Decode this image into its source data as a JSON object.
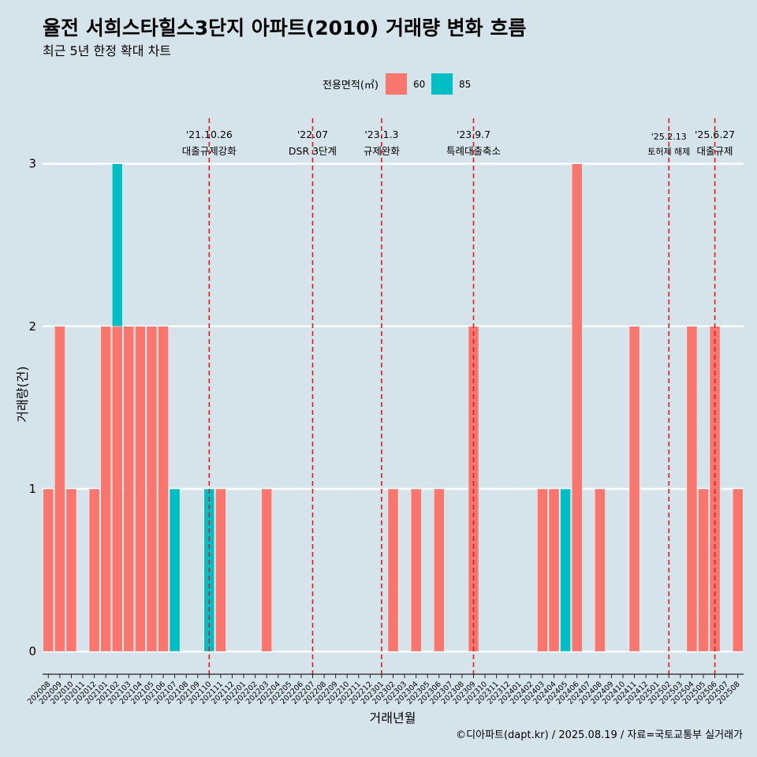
{
  "chart_data": {
    "type": "bar",
    "title": "율전 서희스타힐스3단지 아파트(2010) 거래량 변화 흐름",
    "subtitle": "최근 5년 한정 확대 차트",
    "xlabel": "거래년월",
    "ylabel": "거래량(건)",
    "ylim": [
      -0.14,
      3.28
    ],
    "yticks": [
      0,
      1,
      2,
      3
    ],
    "grid": "horizontal major",
    "legend": {
      "title": "전용면적(㎡)",
      "placement": "top"
    },
    "categories": [
      "202008",
      "202009",
      "202010",
      "202011",
      "202012",
      "202101",
      "202102",
      "202103",
      "202104",
      "202105",
      "202106",
      "202107",
      "202108",
      "202109",
      "202110",
      "202111",
      "202112",
      "202201",
      "202202",
      "202203",
      "202204",
      "202205",
      "202206",
      "202207",
      "202208",
      "202209",
      "202210",
      "202211",
      "202212",
      "202301",
      "202302",
      "202303",
      "202304",
      "202305",
      "202306",
      "202307",
      "202308",
      "202309",
      "202310",
      "202311",
      "202312",
      "202401",
      "202402",
      "202403",
      "202404",
      "202405",
      "202406",
      "202407",
      "202408",
      "202409",
      "202410",
      "202411",
      "202412",
      "202501",
      "202502",
      "202503",
      "202504",
      "202505",
      "202506",
      "202507",
      "202508"
    ],
    "series": [
      {
        "name": "60",
        "color": "#f8766d",
        "values": [
          1,
          2,
          1,
          0,
          1,
          2,
          2,
          2,
          2,
          2,
          2,
          0,
          0,
          0,
          0,
          1,
          0,
          0,
          0,
          1,
          0,
          0,
          0,
          0,
          0,
          0,
          0,
          0,
          0,
          0,
          1,
          0,
          1,
          0,
          1,
          0,
          0,
          2,
          0,
          0,
          0,
          0,
          0,
          1,
          1,
          0,
          3,
          0,
          1,
          0,
          0,
          2,
          0,
          0,
          0,
          0,
          2,
          1,
          2,
          0,
          1
        ]
      },
      {
        "name": "85",
        "color": "#00bfc4",
        "values": [
          0,
          0,
          0,
          0,
          0,
          0,
          1,
          0,
          0,
          0,
          0,
          1,
          0,
          0,
          1,
          0,
          0,
          0,
          0,
          0,
          0,
          0,
          0,
          0,
          0,
          0,
          0,
          0,
          0,
          0,
          0,
          0,
          0,
          0,
          0,
          0,
          0,
          0,
          0,
          0,
          0,
          0,
          0,
          0,
          0,
          1,
          0,
          0,
          0,
          0,
          0,
          0,
          0,
          0,
          0,
          0,
          0,
          0,
          0,
          0,
          0
        ]
      }
    ],
    "annotations": [
      {
        "x": "202110",
        "date": "'21.10.26",
        "label": "대출규제강화"
      },
      {
        "x": "202207",
        "date": "'22.07",
        "label": "DSR 3단계"
      },
      {
        "x": "202301",
        "date": "'23.1.3",
        "label": "규제완화"
      },
      {
        "x": "202309",
        "date": "'23.9.7",
        "label": "특례대출축소"
      },
      {
        "x": "202502",
        "date": "'25.2.13",
        "label": "토허제 해제"
      },
      {
        "x": "202506",
        "date": "'25.6.27",
        "label": "대출규제"
      }
    ],
    "annotation_color": "#e41a1c"
  },
  "caption": "©디아파트(dapt.kr) / 2025.08.19 / 자료=국토교통부 실거래가"
}
